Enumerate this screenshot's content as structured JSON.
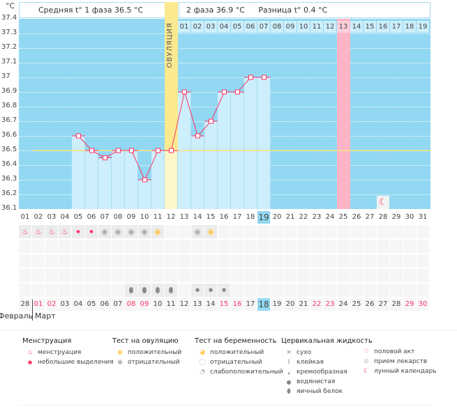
{
  "header": {
    "unit": "°C",
    "phase1": "Средняя t° 1 фаза  36.5 °C",
    "phase2": "2 фаза  36.9 °C",
    "difference": "Разница t° 0.4 °C",
    "ovulation_label": "ОВУЛЯЦИЯ"
  },
  "chart_data": {
    "type": "bar+line",
    "ylabel": "°C",
    "ylim": [
      36.1,
      37.4
    ],
    "y_ticks": [
      "37.4",
      "37.3",
      "37.2",
      "37.1",
      "37",
      "36.9",
      "36.8",
      "36.7",
      "36.6",
      "36.5",
      "36.4",
      "36.3",
      "36.2",
      "36.1"
    ],
    "grid": true,
    "x_days": [
      "01",
      "02",
      "03",
      "04",
      "05",
      "06",
      "07",
      "08",
      "09",
      "10",
      "11",
      "12",
      "13",
      "14",
      "15",
      "16",
      "17",
      "18",
      "19",
      "20",
      "21",
      "22",
      "23",
      "24",
      "25",
      "26",
      "27",
      "28",
      "29",
      "30",
      "31"
    ],
    "current_day": "19",
    "temperatures": [
      null,
      null,
      null,
      null,
      36.6,
      36.5,
      36.45,
      36.5,
      36.5,
      36.3,
      36.5,
      36.5,
      36.9,
      36.6,
      36.7,
      36.9,
      36.9,
      37.0,
      37.0,
      null,
      null,
      null,
      null,
      null,
      null,
      null,
      null,
      null,
      null,
      null,
      null
    ],
    "coverline": 36.5,
    "ovulation_day": "12",
    "highlight_day": "25",
    "second_phase_days": [
      "01",
      "02",
      "03",
      "04",
      "05",
      "06",
      "07",
      "08",
      "09",
      "10",
      "11",
      "12",
      "13",
      "14",
      "15",
      "16",
      "17",
      "18",
      "19"
    ],
    "moon_day": "28"
  },
  "calendar": {
    "dates": [
      "28",
      "01",
      "02",
      "03",
      "04",
      "05",
      "06",
      "07",
      "08",
      "09",
      "10",
      "11",
      "12",
      "13",
      "14",
      "15",
      "16",
      "17",
      "18",
      "19",
      "20",
      "21",
      "22",
      "23",
      "24",
      "25",
      "26",
      "27",
      "28",
      "29",
      "30"
    ],
    "weekend_indices": [
      1,
      2,
      8,
      9,
      15,
      16,
      22,
      23,
      29,
      30
    ],
    "today_index": 18,
    "months": [
      "Февраль",
      "Март"
    ],
    "symptoms_row1": [
      "menstruation",
      "menstruation",
      "menstruation",
      "menstruation",
      "spotting",
      "spotting",
      "ovu-neg",
      "ovu-neg",
      "ovu-neg",
      "ovu-neg",
      "ovu-pos",
      "",
      "",
      "ovu-neg",
      "ovu-pos"
    ],
    "fluid_row": [
      "",
      "",
      "",
      "",
      "",
      "",
      "",
      "",
      "egg-white",
      "egg-white",
      "egg-white",
      "egg-white",
      "",
      "watery",
      "watery",
      "watery"
    ]
  },
  "legend": {
    "menstruation": {
      "title": "Менструация",
      "items": [
        "менструация",
        "небольшие выделения"
      ]
    },
    "ovulation_test": {
      "title": "Тест на овуляцию",
      "items": [
        "положительный",
        "отрицательный"
      ]
    },
    "pregnancy_test": {
      "title": "Тест на беременность",
      "items": [
        "положительный",
        "отрицательный",
        "слабоположительный"
      ]
    },
    "cervical": {
      "title": "Цервикальная жидкость",
      "items": [
        "сухо",
        "клейкая",
        "кремообразная",
        "водянистая",
        "яичный белок"
      ]
    },
    "other": {
      "items": [
        "половой акт",
        "прием лекарств",
        "лунный календарь"
      ]
    }
  },
  "colors": {
    "background": "#92d8f2",
    "bar": "#cdeefb",
    "line": "#ff3366",
    "ovulation": "#fbe98f",
    "highlight": "#ffb3c6",
    "coverline": "#f5e27a"
  }
}
